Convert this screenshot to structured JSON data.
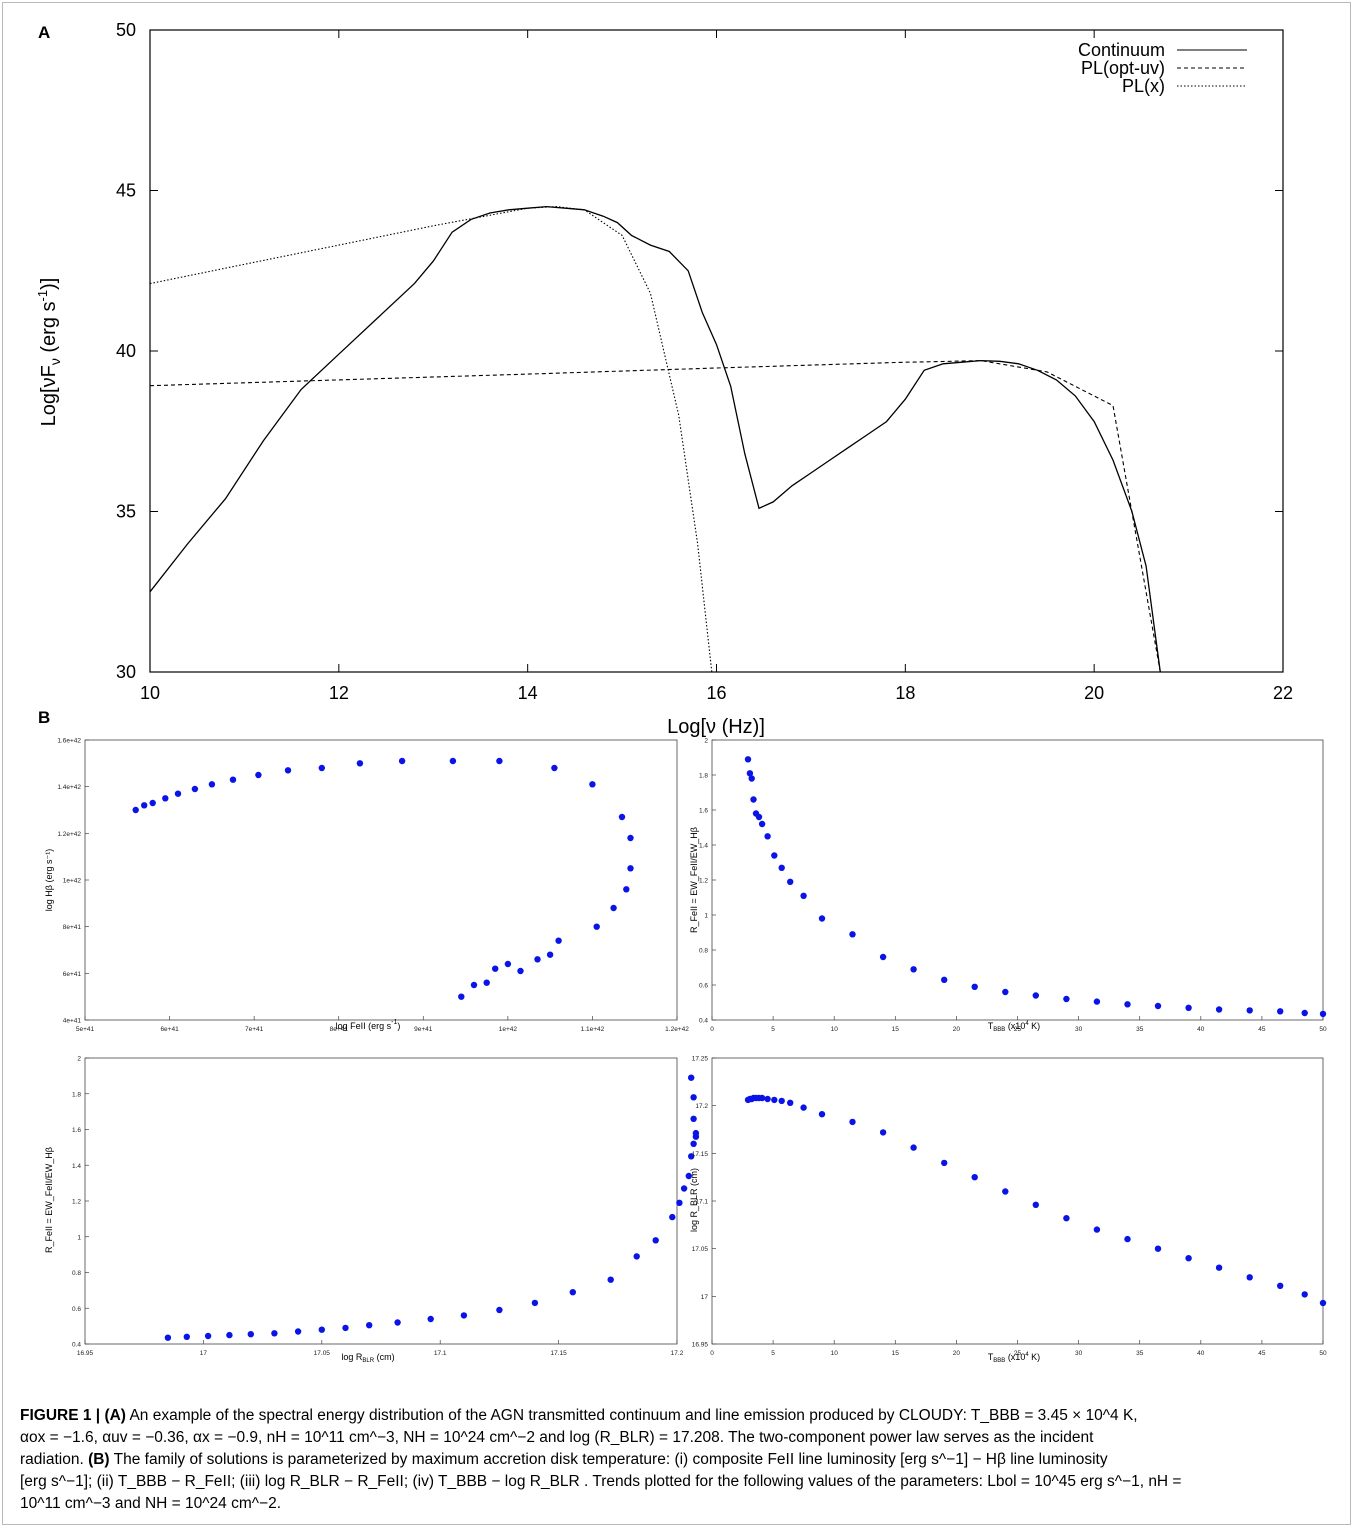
{
  "chart_data": [
    {
      "panel": "A",
      "type": "line",
      "xlabel": "Log[ν (Hz)]",
      "ylabel": "Log[νFν (erg s⁻¹)]",
      "xlim": [
        10,
        22
      ],
      "ylim": [
        30,
        50
      ],
      "xticks": [
        10,
        12,
        14,
        16,
        18,
        20,
        22
      ],
      "yticks": [
        30,
        35,
        40,
        45,
        50
      ],
      "legend_position": "top-right",
      "series": [
        {
          "name": "Continuum",
          "style": "solid",
          "x": [
            10.0,
            10.4,
            10.8,
            11.2,
            11.6,
            12.0,
            12.4,
            12.8,
            13.0,
            13.2,
            13.4,
            13.6,
            13.8,
            14.0,
            14.2,
            14.4,
            14.6,
            14.8,
            14.95,
            15.1,
            15.3,
            15.5,
            15.7,
            15.85,
            16.0,
            16.15,
            16.3,
            16.45,
            16.6,
            16.8,
            17.0,
            17.2,
            17.4,
            17.6,
            17.8,
            18.0,
            18.2,
            18.4,
            18.6,
            18.8,
            19.0,
            19.2,
            19.4,
            19.6,
            19.8,
            20.0,
            20.2,
            20.4,
            20.55,
            20.7
          ],
          "y": [
            32.5,
            34.0,
            35.4,
            37.2,
            38.8,
            39.9,
            41.0,
            42.1,
            42.8,
            43.7,
            44.1,
            44.3,
            44.4,
            44.45,
            44.5,
            44.45,
            44.4,
            44.2,
            44.0,
            43.6,
            43.3,
            43.1,
            42.5,
            41.2,
            40.2,
            38.9,
            36.8,
            35.1,
            35.3,
            35.8,
            36.2,
            36.6,
            37.0,
            37.4,
            37.8,
            38.5,
            39.4,
            39.6,
            39.65,
            39.7,
            39.68,
            39.6,
            39.4,
            39.1,
            38.6,
            37.8,
            36.6,
            35.0,
            33.3,
            30.0
          ]
        },
        {
          "name": "PL(opt-uv)",
          "style": "dashed",
          "x": [
            10,
            12,
            14,
            16,
            18,
            18.2,
            18.8,
            19.5,
            20.2,
            20.7
          ],
          "y": [
            38.92,
            39.1,
            39.28,
            39.47,
            39.65,
            39.66,
            39.7,
            39.35,
            38.3,
            30.0
          ]
        },
        {
          "name": "PL(x)",
          "style": "dotted",
          "x": [
            10,
            11,
            12,
            13,
            14,
            14.3,
            14.6,
            15.0,
            15.3,
            15.6,
            15.8,
            15.95
          ],
          "y": [
            42.1,
            42.7,
            43.3,
            43.9,
            44.45,
            44.5,
            44.4,
            43.6,
            41.8,
            38.0,
            34.0,
            30.0
          ]
        }
      ]
    },
    {
      "panel": "B(i)",
      "type": "scatter",
      "xlabel": "log FeII (erg s⁻¹)",
      "ylabel": "log Hβ (erg s⁻¹)",
      "xlim": [
        5e+41,
        1.2e+42
      ],
      "ylim": [
        4e+41,
        1.6e+42
      ],
      "xticks": [
        "5e+41",
        "6e+41",
        "7e+41",
        "8e+41",
        "9e+41",
        "1e+42",
        "1.1e+42",
        "1.2e+42"
      ],
      "yticks": [
        "4e+41",
        "6e+41",
        "8e+41",
        "1e+42",
        "1.2e+42",
        "1.4e+42",
        "1.6e+42"
      ],
      "x": [
        5.6e+41,
        5.7e+41,
        5.8e+41,
        5.95e+41,
        6.1e+41,
        6.3e+41,
        6.5e+41,
        6.75e+41,
        7.05e+41,
        7.4e+41,
        7.8e+41,
        8.25e+41,
        8.75e+41,
        9.35e+41,
        9.9e+41,
        1.055e+42,
        1.1e+42,
        1.135e+42,
        1.145e+42,
        1.145e+42,
        1.14e+42,
        1.125e+42,
        1.105e+42,
        1.06e+42,
        1.05e+42,
        1.035e+42,
        1.015e+42,
        1e+42,
        9.85e+41,
        9.75e+41,
        9.6e+41,
        9.45e+41
      ],
      "y": [
        1.3e+42,
        1.32e+42,
        1.33e+42,
        1.35e+42,
        1.37e+42,
        1.39e+42,
        1.41e+42,
        1.43e+42,
        1.45e+42,
        1.47e+42,
        1.48e+42,
        1.5e+42,
        1.51e+42,
        1.51e+42,
        1.51e+42,
        1.48e+42,
        1.41e+42,
        1.27e+42,
        1.18e+42,
        1.05e+42,
        9.6e+41,
        8.8e+41,
        8e+41,
        7.4e+41,
        6.8e+41,
        6.6e+41,
        6.1e+41,
        6.4e+41,
        6.2e+41,
        5.6e+41,
        5.5e+41,
        5e+41
      ]
    },
    {
      "panel": "B(ii)",
      "type": "scatter",
      "xlabel": "Tʙʙʙ (x10⁴ K)",
      "ylabel": "R_FeII = EW_FeII/EW_Hβ",
      "xlim": [
        0,
        50
      ],
      "ylim": [
        0.4,
        2
      ],
      "xticks": [
        0,
        5,
        10,
        15,
        20,
        25,
        30,
        35,
        40,
        45,
        50
      ],
      "yticks": [
        0.4,
        0.6,
        0.8,
        1,
        1.2,
        1.4,
        1.6,
        1.8,
        2
      ],
      "x": [
        2.95,
        3.1,
        3.25,
        3.4,
        3.6,
        3.85,
        4.1,
        4.55,
        5.1,
        5.7,
        6.4,
        7.5,
        9.0,
        11.5,
        14.0,
        16.5,
        19.0,
        21.5,
        24.0,
        26.5,
        29.0,
        31.5,
        34.0,
        36.5,
        39.0,
        41.5,
        44.0,
        46.5,
        48.5,
        50.0
      ],
      "y": [
        1.89,
        1.81,
        1.78,
        1.66,
        1.58,
        1.56,
        1.52,
        1.45,
        1.34,
        1.27,
        1.19,
        1.11,
        0.98,
        0.89,
        0.76,
        0.69,
        0.63,
        0.59,
        0.56,
        0.54,
        0.52,
        0.505,
        0.49,
        0.48,
        0.47,
        0.46,
        0.455,
        0.45,
        0.44,
        0.435
      ]
    },
    {
      "panel": "B(iii)",
      "type": "scatter",
      "xlabel": "log R_BLR (cm)",
      "ylabel": "R_FeII = EW_FeII/EW_Hβ",
      "xlim": [
        16.95,
        17.2
      ],
      "ylim": [
        0.4,
        2
      ],
      "xticks": [
        16.95,
        17,
        17.05,
        17.1,
        17.15,
        17.2
      ],
      "yticks": [
        0.4,
        0.6,
        0.8,
        1,
        1.2,
        1.4,
        1.6,
        1.8,
        2
      ],
      "x": [
        16.985,
        16.993,
        17.002,
        17.011,
        17.02,
        17.03,
        17.04,
        17.05,
        17.06,
        17.07,
        17.082,
        17.096,
        17.11,
        17.125,
        17.14,
        17.156,
        17.172,
        17.183,
        17.191,
        17.198,
        17.201,
        17.203,
        17.205,
        17.206,
        17.207,
        17.208,
        17.208,
        17.207,
        17.207,
        17.206
      ],
      "y": [
        0.435,
        0.44,
        0.445,
        0.45,
        0.455,
        0.46,
        0.47,
        0.48,
        0.49,
        0.505,
        0.52,
        0.54,
        0.56,
        0.59,
        0.63,
        0.69,
        0.76,
        0.89,
        0.98,
        1.11,
        1.19,
        1.27,
        1.34,
        1.45,
        1.52,
        1.56,
        1.58,
        1.66,
        1.78,
        1.89
      ]
    },
    {
      "panel": "B(iv)",
      "type": "scatter",
      "xlabel": "Tʙʙʙ (x10⁴ K)",
      "ylabel": "log R_BLR (cm)",
      "xlim": [
        0,
        50
      ],
      "ylim": [
        16.95,
        17.25
      ],
      "xticks": [
        0,
        5,
        10,
        15,
        20,
        25,
        30,
        35,
        40,
        45,
        50
      ],
      "yticks": [
        16.95,
        17,
        17.05,
        17.1,
        17.15,
        17.2,
        17.25
      ],
      "x": [
        2.95,
        3.1,
        3.25,
        3.4,
        3.6,
        3.85,
        4.1,
        4.55,
        5.1,
        5.7,
        6.4,
        7.5,
        9.0,
        11.5,
        14.0,
        16.5,
        19.0,
        21.5,
        24.0,
        26.5,
        29.0,
        31.5,
        34.0,
        36.5,
        39.0,
        41.5,
        44.0,
        46.5,
        48.5,
        50.0
      ],
      "y": [
        17.206,
        17.207,
        17.207,
        17.208,
        17.208,
        17.208,
        17.208,
        17.207,
        17.206,
        17.205,
        17.203,
        17.198,
        17.191,
        17.183,
        17.172,
        17.156,
        17.14,
        17.125,
        17.11,
        17.096,
        17.082,
        17.07,
        17.06,
        17.05,
        17.04,
        17.03,
        17.02,
        17.011,
        17.002,
        16.993
      ]
    }
  ],
  "panelA": {
    "label": "A",
    "xlabel": "Log[ν (Hz)]",
    "ylabel_main": "Log[νF",
    "ylabel_sub": "ν",
    "ylabel_mid": " (erg s",
    "ylabel_sup": "-1",
    "ylabel_end": ")]",
    "xtick_labels": [
      "10",
      "12",
      "14",
      "16",
      "18",
      "20",
      "22"
    ],
    "ytick_labels": [
      "30",
      "35",
      "40",
      "45",
      "50"
    ],
    "legend": [
      "Continuum",
      "PL(opt-uv)",
      "PL(x)"
    ]
  },
  "panelB": {
    "label": "B",
    "p1": {
      "xlabel": "log FeII (erg s",
      "xlabel_sup": "-1",
      "xlabel_end": ")",
      "ylabel": "log Hβ (erg s⁻¹)",
      "xtick_labels": [
        "5e+41",
        "6e+41",
        "7e+41",
        "8e+41",
        "9e+41",
        "1e+42",
        "1.1e+42",
        "1.2e+42"
      ],
      "ytick_labels": [
        "4e+41",
        "6e+41",
        "8e+41",
        "1e+42",
        "1.2e+42",
        "1.4e+42",
        "1.6e+42"
      ]
    },
    "p2": {
      "xlabel_T": "T",
      "xlabel_sub": "BBB",
      "xlabel_rest": " (x10",
      "xlabel_sup": "4",
      "xlabel_end": " K)",
      "ylabel": "R_FeII = EW_FeII/EW_Hβ",
      "xtick_labels": [
        "0",
        "5",
        "10",
        "15",
        "20",
        "25",
        "30",
        "35",
        "40",
        "45",
        "50"
      ],
      "ytick_labels": [
        "0.4",
        "0.6",
        "0.8",
        "1",
        "1.2",
        "1.4",
        "1.6",
        "1.8",
        "2"
      ]
    },
    "p3": {
      "xlabel": "log R",
      "xlabel_sub": "BLR",
      "xlabel_end": " (cm)",
      "ylabel": "R_FeII = EW_FeII/EW_Hβ",
      "xtick_labels": [
        "16.95",
        "17",
        "17.05",
        "17.1",
        "17.15",
        "17.2"
      ],
      "ytick_labels": [
        "0.4",
        "0.6",
        "0.8",
        "1",
        "1.2",
        "1.4",
        "1.6",
        "1.8",
        "2"
      ]
    },
    "p4": {
      "xlabel_T": "T",
      "xlabel_sub": "BBB",
      "xlabel_rest": " (x10",
      "xlabel_sup": "4",
      "xlabel_end": " K)",
      "ylabel": "log R_BLR (cm)",
      "xtick_labels": [
        "0",
        "5",
        "10",
        "15",
        "20",
        "25",
        "30",
        "35",
        "40",
        "45",
        "50"
      ],
      "ytick_labels": [
        "16.95",
        "17",
        "17.05",
        "17.1",
        "17.15",
        "17.2",
        "17.25"
      ]
    }
  },
  "caption": {
    "fig": "FIGURE 1 |",
    "a": "(A)",
    "line1": "An example of the spectral energy distribution of the AGN transmitted continuum and line emission produced by CLOUDY: T_BBB = 3.45 × 10^4 K,",
    "line2": "αox = −1.6, αuv = −0.36, αx = −0.9, nH = 10^11 cm^−3, NH = 10^24 cm^−2 and log (R_BLR) = 17.208. The two-component power law serves as the incident",
    "line3a": "radiation.",
    "b": "(B)",
    "line3b": "The family of solutions is parameterized by maximum accretion disk temperature: (i) composite FeII line luminosity [erg s^−1] − Hβ line luminosity",
    "line4": "[erg s^−1]; (ii) T_BBB − R_FeII; (iii) log R_BLR − R_FeII; (iv) T_BBB − log R_BLR . Trends plotted for the following values of the parameters: Lbol = 10^45 erg s^−1, nH =",
    "line5": "10^11 cm^−3 and NH = 10^24 cm^−2."
  }
}
